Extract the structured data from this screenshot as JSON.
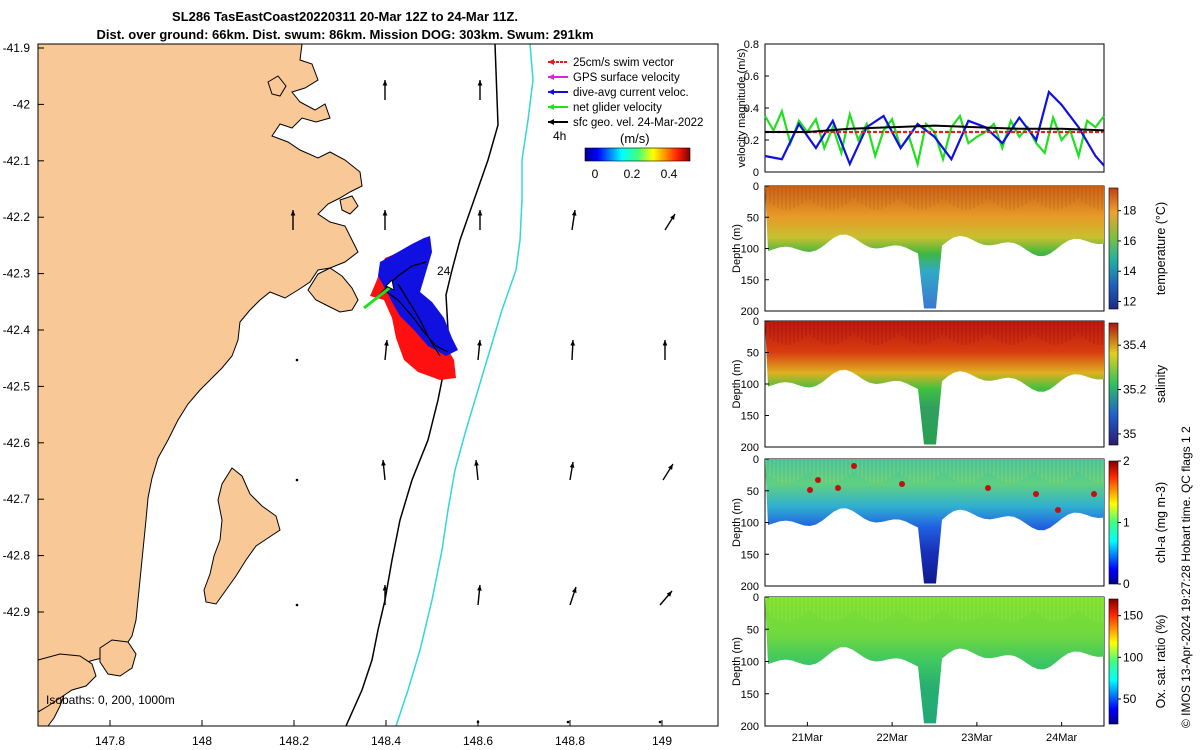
{
  "title": {
    "line1": "SL286 TasEastCoast20220311 20-Mar 12Z to 24-Mar 11Z.",
    "line2": "Dist. over ground: 66km. Dist. swum: 86km. Mission DOG: 303km. Swum: 291km"
  },
  "map": {
    "lon_ticks": [
      "147.8",
      "148",
      "148.2",
      "148.4",
      "148.6",
      "148.8",
      "149"
    ],
    "lat_ticks": [
      "-41.9",
      "-42",
      "-42.1",
      "-42.2",
      "-42.3",
      "-42.4",
      "-42.5",
      "-42.6",
      "-42.7",
      "-42.8",
      "-42.9"
    ],
    "legend": [
      {
        "label": "25cm/s swim vector",
        "color": "#e02020"
      },
      {
        "label": "GPS surface velocity",
        "color": "#e020e0"
      },
      {
        "label": "dive-avg current veloc.",
        "color": "#1010e0"
      },
      {
        "label": "net glider velocity",
        "color": "#20e020"
      },
      {
        "label": "sfc geo. vel. 24-Mar-2022",
        "color": "#000000"
      }
    ],
    "arrow_label": "4h",
    "colorbar_title": "(m/s)",
    "colorbar_ticks": [
      "0",
      "0.2",
      "0.4"
    ],
    "track_label": "24",
    "isobaths": "Isobaths: 0, 200, 1000m",
    "colors": {
      "land": "#f8c896",
      "isobath_200": "#000000",
      "isobath_1000": "#30d8d8"
    }
  },
  "chart_data": [
    {
      "type": "line",
      "title": "",
      "ylabel": "velocity magnitude (m/s)",
      "ylim": [
        0,
        0.8
      ],
      "yticks": [
        "0",
        "0.2",
        "0.4",
        "0.6",
        "0.8"
      ],
      "x_days": [
        20.5,
        24.5
      ],
      "series": [
        {
          "name": "net glider velocity",
          "color": "#20e020",
          "x": [
            20.5,
            20.6,
            20.7,
            20.8,
            20.9,
            21.0,
            21.1,
            21.2,
            21.3,
            21.4,
            21.5,
            21.6,
            21.7,
            21.8,
            21.9,
            22.0,
            22.1,
            22.2,
            22.3,
            22.4,
            22.5,
            22.6,
            22.7,
            22.8,
            22.9,
            23.0,
            23.1,
            23.2,
            23.3,
            23.4,
            23.5,
            23.6,
            23.7,
            23.8,
            23.9,
            24.0,
            24.1,
            24.2,
            24.3,
            24.4,
            24.5
          ],
          "values": [
            0.35,
            0.26,
            0.38,
            0.18,
            0.32,
            0.25,
            0.33,
            0.15,
            0.28,
            0.12,
            0.36,
            0.2,
            0.3,
            0.1,
            0.26,
            0.33,
            0.15,
            0.22,
            0.05,
            0.3,
            0.25,
            0.08,
            0.28,
            0.35,
            0.18,
            0.22,
            0.25,
            0.3,
            0.15,
            0.32,
            0.22,
            0.28,
            0.18,
            0.12,
            0.34,
            0.2,
            0.26,
            0.1,
            0.32,
            0.28,
            0.35
          ]
        },
        {
          "name": "dive-avg current veloc.",
          "color": "#1010e0",
          "x": [
            20.5,
            20.7,
            20.9,
            21.1,
            21.3,
            21.5,
            21.7,
            21.9,
            22.1,
            22.3,
            22.5,
            22.7,
            22.9,
            23.1,
            23.3,
            23.5,
            23.7,
            23.85,
            24.0,
            24.2,
            24.4,
            24.5
          ],
          "values": [
            0.1,
            0.08,
            0.3,
            0.15,
            0.32,
            0.05,
            0.28,
            0.35,
            0.15,
            0.3,
            0.22,
            0.08,
            0.32,
            0.28,
            0.18,
            0.34,
            0.2,
            0.5,
            0.42,
            0.28,
            0.1,
            0.04
          ]
        },
        {
          "name": "25cm/s swim vector",
          "color": "#e02020",
          "x": [
            20.5,
            24.5
          ],
          "values": [
            0.25,
            0.25
          ]
        },
        {
          "name": "sfc geo. vel.",
          "color": "#000000",
          "x": [
            20.5,
            21.0,
            21.5,
            22.0,
            22.5,
            23.0,
            23.5,
            24.0,
            24.5
          ],
          "values": [
            0.25,
            0.25,
            0.27,
            0.28,
            0.29,
            0.28,
            0.27,
            0.27,
            0.26
          ]
        }
      ]
    },
    {
      "type": "heatmap",
      "ylabel": "Depth (m)",
      "colorbar_label": "temperature (°C)",
      "ylim": [
        200,
        0
      ],
      "yticks": [
        "0",
        "50",
        "100",
        "150",
        "200"
      ],
      "cticks": [
        "12",
        "14",
        "16",
        "18"
      ],
      "crange": [
        11.5,
        19.5
      ]
    },
    {
      "type": "heatmap",
      "ylabel": "Depth (m)",
      "colorbar_label": "salinity",
      "ylim": [
        200,
        0
      ],
      "yticks": [
        "0",
        "50",
        "100",
        "150",
        "200"
      ],
      "cticks": [
        "35",
        "35.2",
        "35.4"
      ],
      "crange": [
        34.95,
        35.5
      ]
    },
    {
      "type": "heatmap",
      "ylabel": "Depth (m)",
      "colorbar_label": "chl-a (mg m-3)",
      "ylim": [
        200,
        0
      ],
      "yticks": [
        "0",
        "50",
        "100",
        "150",
        "200"
      ],
      "cticks": [
        "0",
        "1",
        "2"
      ],
      "crange": [
        0,
        2
      ]
    },
    {
      "type": "heatmap",
      "ylabel": "Depth (m)",
      "colorbar_label": "Ox. sat. ratio (%)",
      "ylim": [
        200,
        0
      ],
      "yticks": [
        "0",
        "50",
        "100",
        "150",
        "200"
      ],
      "cticks": [
        "50",
        "100",
        "150"
      ],
      "crange": [
        20,
        170
      ]
    }
  ],
  "time_axis": {
    "labels": [
      "21Mar",
      "22Mar",
      "23Mar",
      "24Mar"
    ],
    "days": [
      21,
      22,
      23,
      24
    ]
  },
  "side_note": "© IMOS 13-Apr-2024 19:27:28 Hobart time. QC flags 1  2"
}
